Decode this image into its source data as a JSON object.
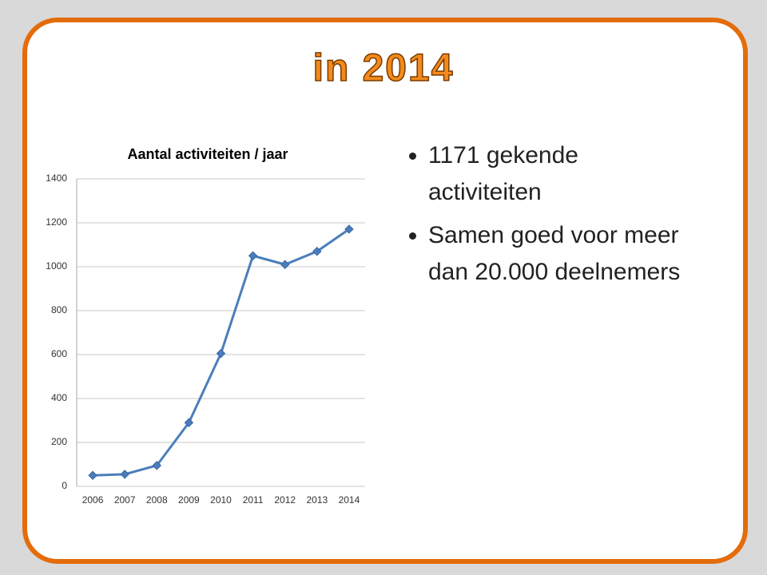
{
  "slide": {
    "title": "in 2014",
    "bullets": [
      "1171 gekende activiteiten",
      "Samen goed voor meer dan 20.000 deelnemers"
    ]
  },
  "chart_data": {
    "type": "line",
    "title": "Aantal activiteiten / jaar",
    "categories": [
      "2006",
      "2007",
      "2008",
      "2009",
      "2010",
      "2011",
      "2012",
      "2013",
      "2014"
    ],
    "values": [
      50,
      55,
      95,
      290,
      605,
      1050,
      1010,
      1070,
      1171
    ],
    "color": "#4a7ebb",
    "ylim": [
      0,
      1400
    ],
    "yticks": [
      0,
      200,
      400,
      600,
      800,
      1000,
      1200,
      1400
    ],
    "grid": true
  }
}
